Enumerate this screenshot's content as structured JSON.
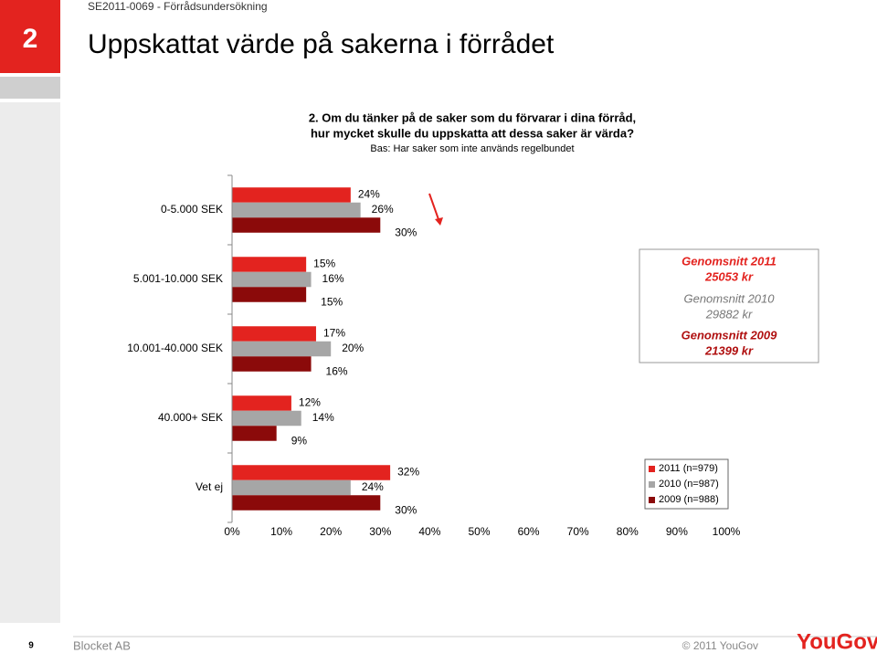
{
  "header": "SE2011-0069 - Förrådsundersökning",
  "slide_number": "2",
  "title": "Uppskattat värde på sakerna i förrådet",
  "question": [
    "2. Om du tänker på de saker som du förvarar i dina förråd,",
    "hur mycket skulle du uppskatta att dessa saker är värda?"
  ],
  "base": "Bas: Har saker som inte används regelbundet",
  "averages": [
    "Genomsnitt 2011",
    "25053 kr",
    "Genomsnitt 2010",
    "29882 kr",
    "Genomsnitt 2009",
    "21399 kr"
  ],
  "footer": {
    "page": "9",
    "company": "Blocket AB",
    "copyright": "© 2011 YouGov",
    "logo": "YouGov"
  },
  "chart_data": {
    "type": "bar",
    "orientation": "horizontal",
    "categories": [
      "0-5.000 SEK",
      "5.001-10.000 SEK",
      "10.001-40.000 SEK",
      "40.000+ SEK",
      "Vet ej"
    ],
    "series": [
      {
        "name": "2011 (n=979)",
        "color": "#e3231f",
        "values": [
          24,
          15,
          17,
          12,
          32
        ],
        "value_labels": [
          "24%",
          "15%",
          "17%",
          "12%",
          "32%"
        ]
      },
      {
        "name": "2010 (n=987)",
        "color": "#a6a6a6",
        "values": [
          26,
          16,
          20,
          14,
          24
        ],
        "value_labels": [
          "26%",
          "16%",
          "20%",
          "14%",
          "24%"
        ]
      },
      {
        "name": "2009 (n=988)",
        "color": "#8b0a0a",
        "values": [
          30,
          15,
          16,
          9,
          30
        ],
        "value_labels": [
          "30%",
          "15%",
          "16%",
          "9%",
          "30%"
        ]
      }
    ],
    "xlim": [
      0,
      100
    ],
    "xticks": [
      {
        "value": 0,
        "label": "0%"
      },
      {
        "value": 10,
        "label": "10%"
      },
      {
        "value": 20,
        "label": "20%"
      },
      {
        "value": 30,
        "label": "30%"
      },
      {
        "value": 40,
        "label": "40%"
      },
      {
        "value": 50,
        "label": "50%"
      },
      {
        "value": 60,
        "label": "60%"
      },
      {
        "value": 70,
        "label": "70%"
      },
      {
        "value": 80,
        "label": "80%"
      },
      {
        "value": 90,
        "label": "90%"
      },
      {
        "value": 100,
        "label": "100%"
      }
    ],
    "legend": "lower-right"
  }
}
